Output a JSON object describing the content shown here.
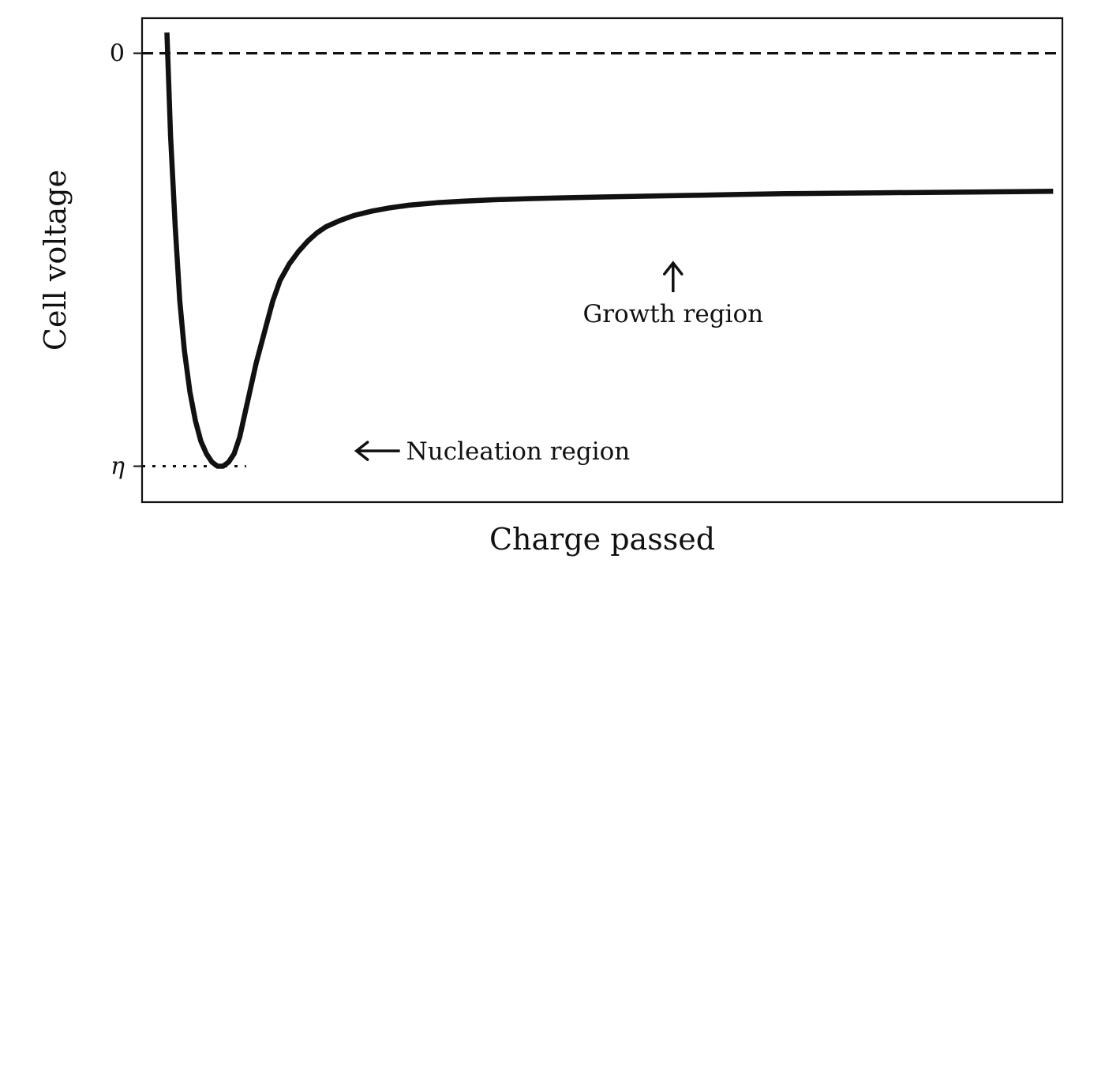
{
  "chart_data": {
    "type": "line",
    "title": "",
    "xlabel": "Charge passed",
    "ylabel": "Cell voltage",
    "xlim": [
      0,
      1
    ],
    "ylim": [
      -1.087,
      0.085
    ],
    "y_ticks": [
      {
        "value": 0,
        "label": "0"
      },
      {
        "value": -1,
        "label": "η"
      }
    ],
    "x_ticks": [],
    "grid": false,
    "legend": "none",
    "reference_lines": [
      {
        "name": "zero-line",
        "y": 0,
        "style": "dashed"
      },
      {
        "name": "eta-line",
        "y": -1,
        "x_end": 0.113,
        "style": "dotted"
      }
    ],
    "series": [
      {
        "color": "#111111",
        "x": [
          0.027,
          0.031,
          0.036,
          0.041,
          0.046,
          0.052,
          0.058,
          0.064,
          0.07,
          0.076,
          0.082,
          0.088,
          0.094,
          0.1,
          0.106,
          0.112,
          0.118,
          0.124,
          0.13,
          0.136,
          0.142,
          0.15,
          0.16,
          0.17,
          0.18,
          0.19,
          0.2,
          0.215,
          0.23,
          0.25,
          0.27,
          0.29,
          0.32,
          0.35,
          0.38,
          0.42,
          0.46,
          0.5,
          0.55,
          0.6,
          0.65,
          0.7,
          0.75,
          0.8,
          0.85,
          0.9,
          0.95,
          0.99
        ],
        "y": [
          0.05,
          -0.2,
          -0.42,
          -0.6,
          -0.72,
          -0.82,
          -0.89,
          -0.94,
          -0.97,
          -0.99,
          -1.0,
          -1.0,
          -0.99,
          -0.97,
          -0.93,
          -0.87,
          -0.81,
          -0.75,
          -0.7,
          -0.65,
          -0.6,
          -0.55,
          -0.51,
          -0.48,
          -0.455,
          -0.435,
          -0.42,
          -0.405,
          -0.393,
          -0.382,
          -0.374,
          -0.368,
          -0.362,
          -0.358,
          -0.355,
          -0.352,
          -0.35,
          -0.348,
          -0.346,
          -0.344,
          -0.342,
          -0.34,
          -0.339,
          -0.338,
          -0.337,
          -0.336,
          -0.335,
          -0.334
        ]
      }
    ],
    "annotations": [
      {
        "name": "nucleation-annotation",
        "text": "Nucleation region",
        "x": 0.233,
        "y": -0.963,
        "arrow": "left"
      },
      {
        "name": "growth-annotation",
        "text": "Growth region",
        "x": 0.577,
        "y": -0.613,
        "arrow": "up"
      }
    ]
  }
}
